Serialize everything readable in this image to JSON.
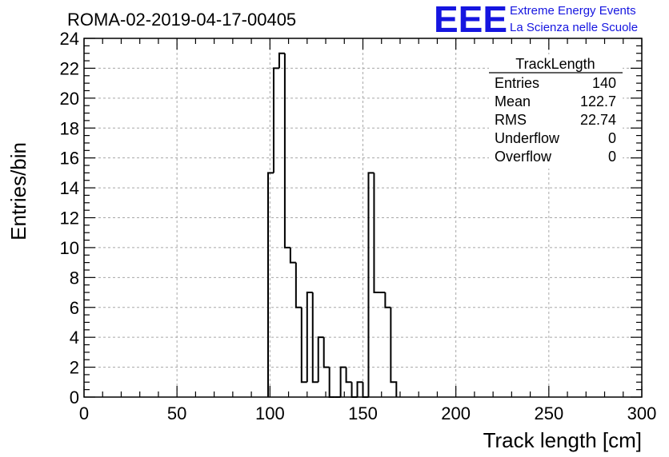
{
  "chart_data": {
    "type": "bar",
    "title": "ROMA-02-2019-04-17-00405",
    "xlabel": "Track length [cm]",
    "ylabel": "Entries/bin",
    "xlim": [
      0,
      300
    ],
    "ylim": [
      0,
      24
    ],
    "xticks": [
      "0",
      "50",
      "100",
      "150",
      "200",
      "250",
      "300"
    ],
    "yticks": [
      "0",
      "2",
      "4",
      "6",
      "8",
      "10",
      "12",
      "14",
      "16",
      "18",
      "20",
      "22",
      "24"
    ],
    "grid": true,
    "bin_width": 3,
    "bins": [
      {
        "x": 99,
        "y": 15
      },
      {
        "x": 102,
        "y": 22
      },
      {
        "x": 105,
        "y": 23
      },
      {
        "x": 108,
        "y": 10
      },
      {
        "x": 111,
        "y": 9
      },
      {
        "x": 114,
        "y": 6
      },
      {
        "x": 117,
        "y": 1
      },
      {
        "x": 120,
        "y": 7
      },
      {
        "x": 123,
        "y": 1
      },
      {
        "x": 126,
        "y": 4
      },
      {
        "x": 129,
        "y": 2
      },
      {
        "x": 132,
        "y": 0
      },
      {
        "x": 135,
        "y": 0
      },
      {
        "x": 138,
        "y": 2
      },
      {
        "x": 141,
        "y": 1
      },
      {
        "x": 144,
        "y": 0
      },
      {
        "x": 147,
        "y": 1
      },
      {
        "x": 150,
        "y": 0
      },
      {
        "x": 153,
        "y": 15
      },
      {
        "x": 156,
        "y": 7
      },
      {
        "x": 159,
        "y": 7
      },
      {
        "x": 162,
        "y": 6
      },
      {
        "x": 165,
        "y": 1
      }
    ],
    "stats_box": {
      "name": "TrackLength",
      "rows": [
        {
          "label": "Entries",
          "value": "140"
        },
        {
          "label": "Mean",
          "value": "122.7"
        },
        {
          "label": "RMS",
          "value": "22.74"
        },
        {
          "label": "Underflow",
          "value": "0"
        },
        {
          "label": "Overflow",
          "value": "0"
        }
      ]
    }
  },
  "brand": {
    "logo_text": "EEE",
    "line1": "Extreme Energy Events",
    "line2": "La Scienza nelle Scuole",
    "color": "#1515e0"
  }
}
